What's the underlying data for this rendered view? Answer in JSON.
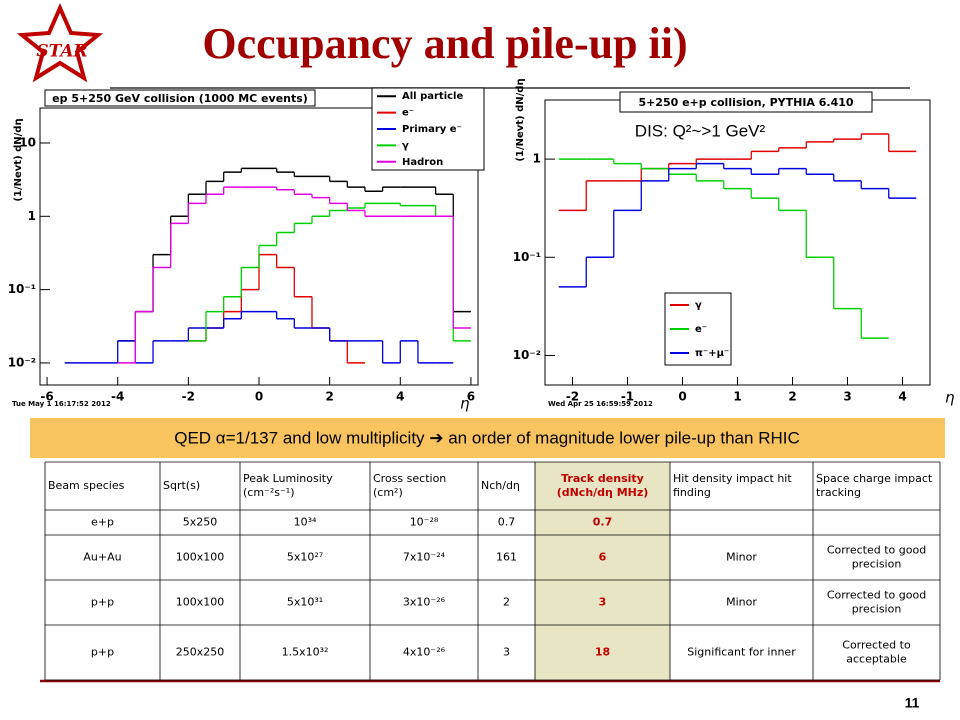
{
  "logo": "STAR",
  "title": "Occupancy and pile-up ii)",
  "chart_data": [
    {
      "type": "histogram",
      "title": "ep 5+250 GeV collision (1000 MC events)",
      "timestamp": "Tue May  1 16:17:52 2012",
      "x_label": "η",
      "y_label": "(1/Nevt) dN/dη",
      "log_y": true,
      "bins": [
        -6,
        -5.5,
        -5,
        -4.5,
        -4,
        -3.5,
        -3,
        -2.5,
        -2,
        -1.5,
        -1,
        -0.5,
        0,
        0.5,
        1,
        1.5,
        2,
        2.5,
        3,
        3.5,
        4,
        4.5,
        5,
        5.5,
        6
      ],
      "xlim": [
        -6.2,
        6.2
      ],
      "xticks": [
        -6,
        -4,
        -2,
        0,
        2,
        4,
        6
      ],
      "ylim": [
        0.005,
        30
      ],
      "yticks": [
        {
          "value": 0.01,
          "label": "10⁻²"
        },
        {
          "value": 0.1,
          "label": "10⁻¹"
        },
        1,
        10
      ],
      "series": [
        {
          "name": "All particle",
          "color": "#000000",
          "values": [
            null,
            null,
            null,
            null,
            0.02,
            0.05,
            0.3,
            1,
            2,
            3,
            4,
            4.5,
            4.5,
            4,
            3.5,
            3.5,
            3,
            2.5,
            2.2,
            2.5,
            2.5,
            2.5,
            2,
            0.05
          ]
        },
        {
          "name": "e⁻",
          "color": "#e00000",
          "values": [
            null,
            null,
            null,
            null,
            null,
            null,
            null,
            null,
            0.02,
            0.03,
            0.05,
            0.1,
            0.3,
            0.2,
            0.08,
            0.03,
            0.02,
            0.01,
            null,
            null,
            null,
            null,
            null,
            null
          ]
        },
        {
          "name": "Primary e⁻",
          "color": "#0000e0",
          "values": [
            null,
            0.01,
            0.01,
            0.01,
            0.02,
            0.01,
            0.02,
            0.02,
            0.03,
            0.03,
            0.04,
            0.05,
            0.05,
            0.04,
            0.03,
            0.03,
            0.02,
            0.02,
            0.02,
            0.01,
            0.02,
            0.01,
            0.01,
            null
          ]
        },
        {
          "name": "γ",
          "color": "#00d000",
          "values": [
            null,
            null,
            null,
            null,
            null,
            null,
            null,
            null,
            0.02,
            0.05,
            0.08,
            0.2,
            0.4,
            0.6,
            0.8,
            1,
            1.2,
            1.3,
            1.5,
            1.5,
            1.4,
            1.4,
            1,
            0.02
          ]
        },
        {
          "name": "Hadron",
          "color": "#e000e0",
          "values": [
            null,
            null,
            null,
            null,
            0.01,
            0.05,
            0.2,
            0.8,
            1.5,
            2,
            2.5,
            2.5,
            2.5,
            2.3,
            2,
            1.8,
            1.5,
            1.2,
            1,
            1,
            1,
            1,
            1,
            0.03
          ]
        }
      ]
    },
    {
      "type": "histogram",
      "title": "5+250 e+p collision, PYTHIA 6.410",
      "annotation": "DIS: Q²~>1 GeV²",
      "timestamp": "Wed Apr 25 16:59:59 2012",
      "x_label": "η",
      "y_label": "(1/Nevt) dN/dη",
      "log_y": true,
      "bins": [
        -2.25,
        -1.75,
        -1.25,
        -0.75,
        -0.25,
        0.25,
        0.75,
        1.25,
        1.75,
        2.25,
        2.75,
        3.25,
        3.75,
        4.25
      ],
      "xlim": [
        -2.5,
        4.5
      ],
      "xticks": [
        -2,
        -1,
        0,
        1,
        2,
        3,
        4
      ],
      "ylim": [
        0.005,
        4
      ],
      "yticks": [
        {
          "value": 0.01,
          "label": "10⁻²"
        },
        {
          "value": 0.1,
          "label": "10⁻¹"
        },
        1
      ],
      "series": [
        {
          "name": "γ",
          "color": "#e00000",
          "values": [
            0.3,
            0.6,
            0.6,
            0.8,
            0.9,
            1,
            1,
            1.2,
            1.3,
            1.5,
            1.6,
            1.8,
            1.2
          ]
        },
        {
          "name": "e⁻",
          "color": "#00d000",
          "values": [
            1,
            1,
            0.9,
            0.8,
            0.7,
            0.6,
            0.5,
            0.4,
            0.3,
            0.1,
            0.03,
            0.015,
            null
          ]
        },
        {
          "name": "π⁻+μ⁻",
          "color": "#0000e0",
          "values": [
            0.05,
            0.1,
            0.3,
            0.6,
            0.8,
            0.9,
            0.8,
            0.7,
            0.8,
            0.7,
            0.6,
            0.5,
            0.4
          ]
        }
      ]
    }
  ],
  "banner": "QED α=1/137 and low multiplicity ➔ an order of magnitude lower pile-up than RHIC",
  "table": {
    "header": [
      "Beam species",
      "Sqrt(s)",
      "Peak Luminosity (cm⁻²s⁻¹)",
      "Cross section (cm²)",
      "Nch/dη",
      "Track density (dNch/dη MHz)",
      "Hit density impact hit finding",
      "Space charge impact tracking"
    ],
    "rows": [
      [
        "e+p",
        "5x250",
        "10³⁴",
        "10⁻²⁸",
        "0.7",
        "0.7"
      ],
      [
        "Au+Au",
        "100x100",
        "5x10²⁷",
        "7x10⁻²⁴",
        "161",
        "6",
        "Minor",
        "Corrected to good precision"
      ],
      [
        "p+p",
        "100x100",
        "5x10³¹",
        "3x10⁻²⁶",
        "2",
        "3",
        "Minor",
        "Corrected to good precision"
      ],
      [
        "p+p",
        "250x250",
        "1.5x10³²",
        "4x10⁻²⁶",
        "3",
        "18",
        "Significant for inner",
        "Corrected to acceptable"
      ]
    ]
  },
  "page_number": "11"
}
